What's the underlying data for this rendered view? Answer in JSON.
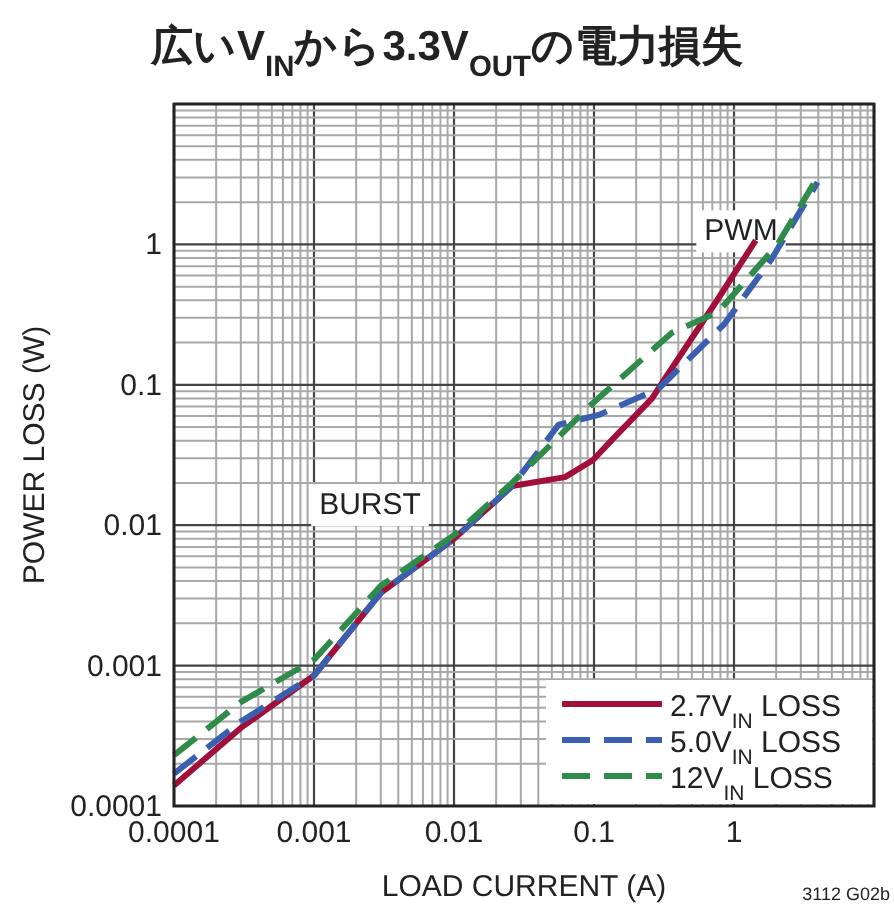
{
  "chart_data": {
    "type": "line",
    "title": "広いV$_{IN}$から3.3V$_{OUT}$の電力損失",
    "xlabel": "LOAD CURRENT (A)",
    "ylabel": "POWER LOSS (W)",
    "xlim": [
      0.0001,
      10
    ],
    "ylim": [
      0.0001,
      10
    ],
    "xticks": [
      0.0001,
      0.001,
      0.01,
      0.1,
      1
    ],
    "yticks": [
      0.0001,
      0.001,
      0.01,
      0.1,
      1
    ],
    "log": "xy",
    "grid": true,
    "legend": "bottom right",
    "series": [
      {
        "name": "2.7V$_{IN}$ LOSS",
        "color": "#a0103a",
        "line_style": "solid",
        "x": [
          0.0001,
          0.0003,
          0.001,
          0.003,
          0.01,
          0.026,
          0.062,
          0.098,
          0.136,
          0.26,
          0.32,
          0.77,
          1.43
        ],
        "values": [
          0.00014,
          0.00036,
          0.00085,
          0.0033,
          0.008,
          0.019,
          0.022,
          0.029,
          0.041,
          0.08,
          0.11,
          0.41,
          1.07
        ]
      },
      {
        "name": "5.0V$_{IN}$ LOSS",
        "color": "#3a5fb0",
        "line_style": "dashed",
        "x": [
          0.0001,
          0.0003,
          0.001,
          0.003,
          0.01,
          0.026,
          0.056,
          0.108,
          0.29,
          0.85,
          1.86,
          3.95
        ],
        "values": [
          0.00017,
          0.0004,
          0.00085,
          0.0033,
          0.008,
          0.019,
          0.052,
          0.061,
          0.094,
          0.27,
          0.79,
          2.77
        ]
      },
      {
        "name": "12V$_{IN}$ LOSS",
        "color": "#2e8b4a",
        "line_style": "dashed",
        "x": [
          0.0001,
          0.0003,
          0.001,
          0.003,
          0.01,
          0.026,
          0.098,
          0.36,
          0.77,
          2.05,
          3.7
        ],
        "values": [
          0.00023,
          0.00055,
          0.0011,
          0.0037,
          0.0085,
          0.02,
          0.074,
          0.235,
          0.33,
          1.0,
          2.7
        ]
      }
    ],
    "annotations": [
      "PWM",
      "BURST",
      "3112 G02b"
    ]
  }
}
